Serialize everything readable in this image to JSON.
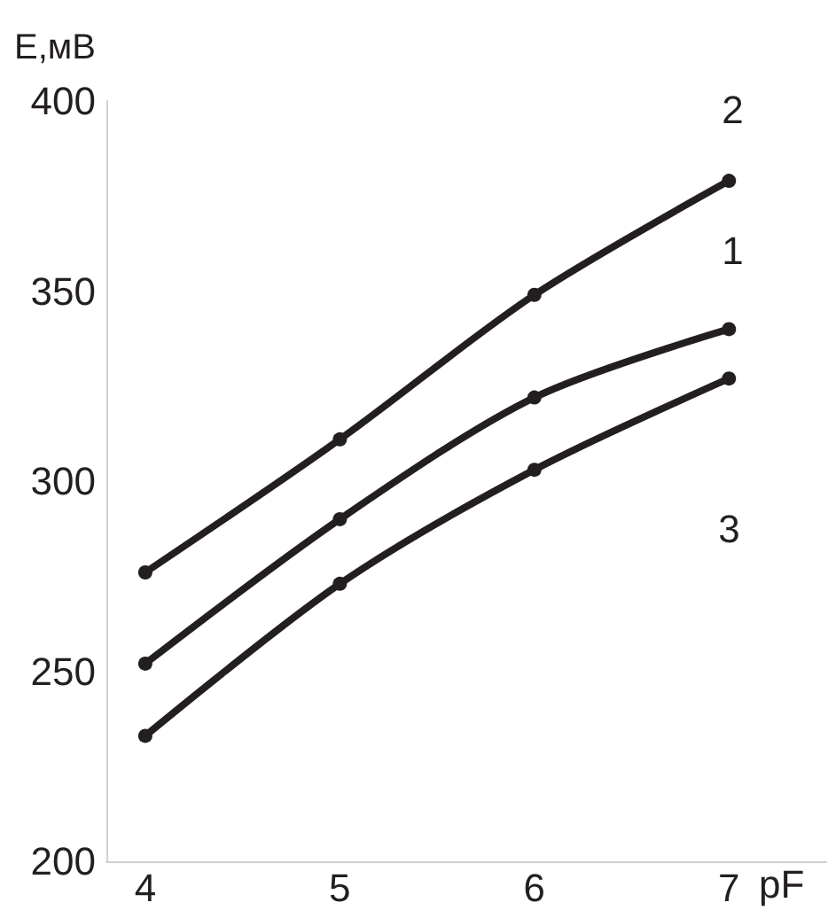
{
  "chart_data": {
    "type": "line",
    "xlabel": "pF",
    "ylabel": "E,мВ",
    "x": [
      4,
      5,
      6,
      7
    ],
    "series": [
      {
        "name": "1",
        "color": "#231f20",
        "values": [
          252,
          290,
          322,
          340
        ]
      },
      {
        "name": "2",
        "color": "#231f20",
        "values": [
          276,
          311,
          349,
          379
        ]
      },
      {
        "name": "3",
        "color": "#231f20",
        "values": [
          233,
          273,
          303,
          327
        ]
      }
    ],
    "xlim": [
      3.8,
      7.5
    ],
    "xticks": [
      4,
      5,
      6,
      7
    ],
    "ylim": [
      200,
      400
    ],
    "yticks": [
      200,
      250,
      300,
      350,
      400
    ],
    "grid": false,
    "legend": false,
    "marker": "circle",
    "line_style": "solid"
  }
}
